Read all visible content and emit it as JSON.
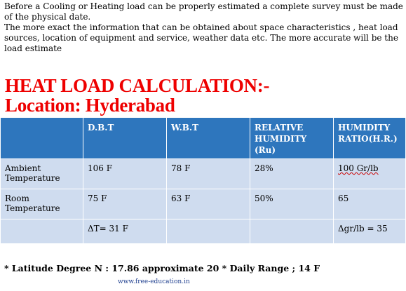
{
  "intro": {
    "line1": "Before a Cooling or Heating load  can be properly estimated a complete survey must  be made of the physical date.",
    "line2": "The more exact the information that can be obtained about space characteristics , heat load sources, location of equipment and service, weather data etc. The more accurate will be the load estimate"
  },
  "title": {
    "line1": "HEAT LOAD CALCULATION:-",
    "line2": "Location:  Hyderabad"
  },
  "table": {
    "headers": [
      "",
      "D.B.T",
      "W.B.T",
      "RELATIVE HUMIDITY (Ru)",
      "HUMIDITY RATIO(H.R.)"
    ],
    "rows": [
      [
        "Ambient Temperature",
        "106 F",
        "78 F",
        "28%",
        "100 Gr/lb"
      ],
      [
        "Room Temperature",
        "75 F",
        "63 F",
        "50%",
        "65"
      ],
      [
        "",
        "ΔT= 31 F",
        "",
        "",
        "Δgr/lb = 35"
      ]
    ]
  },
  "footnote": "* Latitude Degree N : 17.86  approximate 20   * Daily Range ; 14 F",
  "site": "www.free-education.in",
  "colors": {
    "header_bg": "#2e76bd",
    "row_bg": "#cfdcef",
    "title": "#ee0000"
  }
}
